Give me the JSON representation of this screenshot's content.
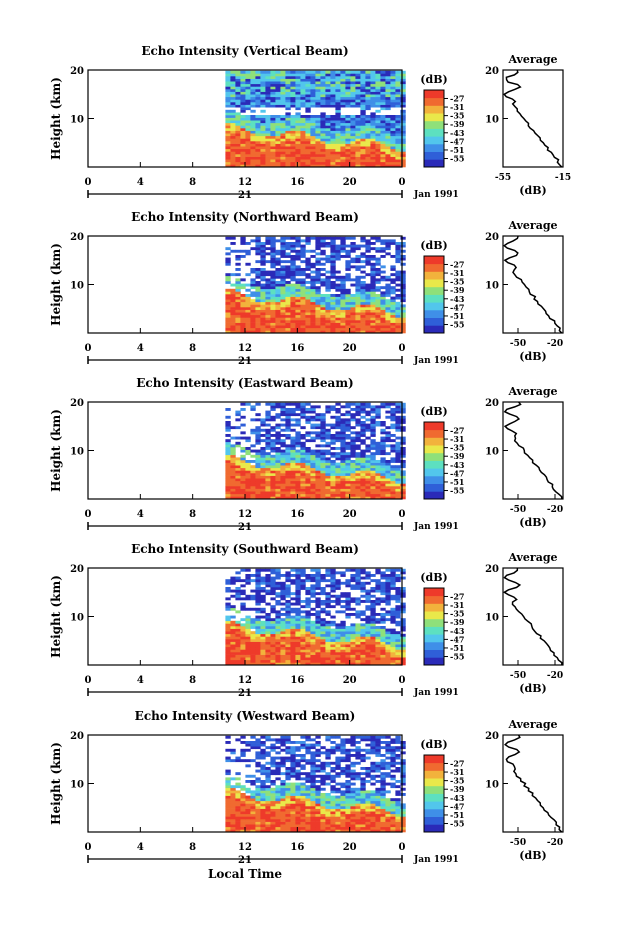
{
  "colors": {
    "scale": [
      "#2a2ab8",
      "#2f5fd8",
      "#3f8fe8",
      "#52c6ec",
      "#5de0c0",
      "#8fe07a",
      "#e9e84a",
      "#f2b23c",
      "#f06a30",
      "#ee3a2a"
    ]
  },
  "figure": {
    "xlabel": "Local Time",
    "panels": [
      {
        "title": "Echo Intensity (Vertical Beam)",
        "avg_xticks": [
          "-55",
          "-15"
        ]
      },
      {
        "title": "Echo Intensity (Northward Beam)",
        "avg_xticks": [
          "-50",
          "-20"
        ]
      },
      {
        "title": "Echo Intensity (Eastward Beam)",
        "avg_xticks": [
          "-50",
          "-20"
        ]
      },
      {
        "title": "Echo Intensity (Southward Beam)",
        "avg_xticks": [
          "-50",
          "-20"
        ]
      },
      {
        "title": "Echo Intensity (Westward Beam)",
        "avg_xticks": [
          "-50",
          "-20"
        ]
      }
    ]
  },
  "chart_data": {
    "type": "heatmap",
    "ylabel": "Height (km)",
    "xlabel": "Local Time",
    "x_ticks": [
      "0",
      "4",
      "8",
      "12",
      "16",
      "20",
      "0"
    ],
    "date_label": "21",
    "month_label": "Jan 1991",
    "xlim": [
      0,
      24
    ],
    "y_ticks": [
      "10",
      "20"
    ],
    "ylim": [
      0,
      20
    ],
    "colorbar": {
      "unit_label": "(dB)",
      "levels": [
        "-27",
        "-31",
        "-35",
        "-39",
        "-43",
        "-47",
        "-51",
        "-55"
      ]
    },
    "data_start_hour": 10.5,
    "average": {
      "title": "Average",
      "xlabel": "(dB)",
      "y_ticks": [
        "10",
        "20"
      ]
    }
  }
}
